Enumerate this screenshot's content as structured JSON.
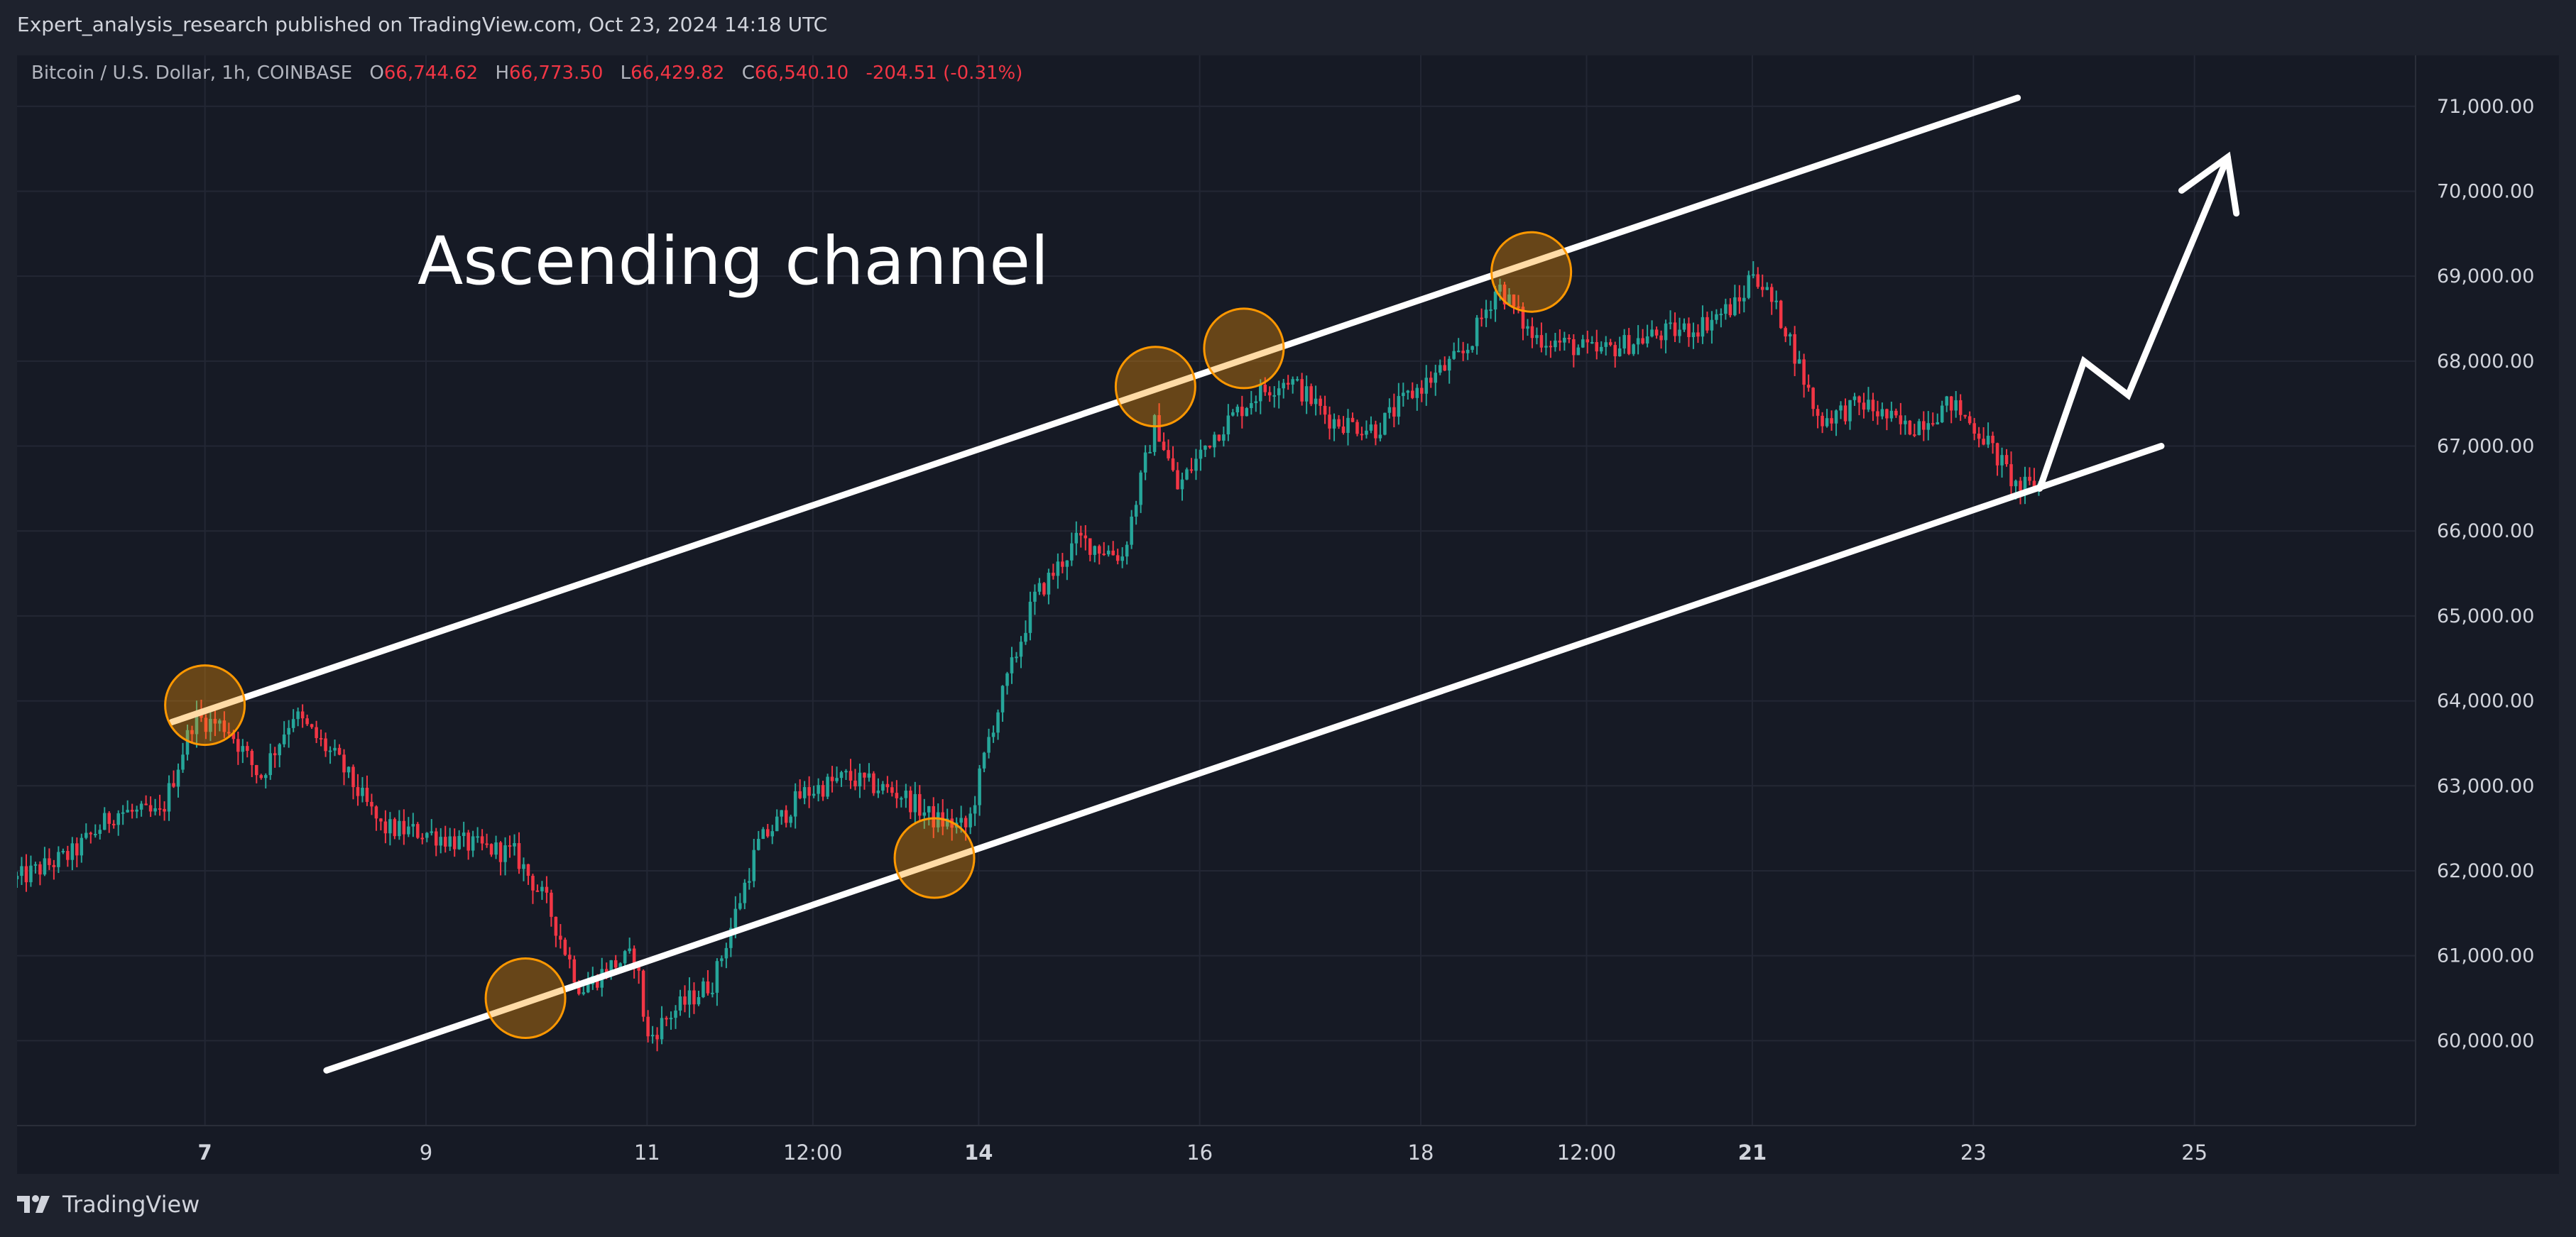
{
  "publisher_line": "Expert_analysis_research published on TradingView.com, Oct 23, 2024 14:18 UTC",
  "legend": {
    "symbol": "Bitcoin / U.S. Dollar, 1h, COINBASE",
    "open_label": "O",
    "open": "66,744.62",
    "high_label": "H",
    "high": "66,773.50",
    "low_label": "L",
    "low": "66,429.82",
    "close_label": "C",
    "close": "66,540.10",
    "change": "-204.51 (-0.31%)"
  },
  "brand": {
    "name": "TradingView",
    "logo_icon": "tradingview-logo-icon"
  },
  "colors": {
    "up": "#26a69a",
    "down": "#f23645",
    "drawing": "#ffffff",
    "marker_fill": "#ff9800",
    "background": "#161a25"
  },
  "chart_data": {
    "type": "candlestick",
    "symbol": "BTCUSD",
    "timeframe": "1h",
    "annotation_text": "Ascending channel",
    "x_tick_labels": [
      {
        "label": "7",
        "day": 7.0,
        "bold": true
      },
      {
        "label": "9",
        "day": 9.0,
        "bold": false
      },
      {
        "label": "11",
        "day": 11.0,
        "bold": false
      },
      {
        "label": "12:00",
        "day": 12.5,
        "bold": false
      },
      {
        "label": "14",
        "day": 14.0,
        "bold": true
      },
      {
        "label": "16",
        "day": 16.0,
        "bold": false
      },
      {
        "label": "18",
        "day": 18.0,
        "bold": false
      },
      {
        "label": "12:00",
        "day": 19.5,
        "bold": false
      },
      {
        "label": "21",
        "day": 21.0,
        "bold": true
      },
      {
        "label": "23",
        "day": 23.0,
        "bold": false
      },
      {
        "label": "25",
        "day": 25.0,
        "bold": false
      }
    ],
    "x_range_days": [
      5.3,
      27.0
    ],
    "y_range": [
      59000,
      71600
    ],
    "y_ticks": [
      60000,
      61000,
      62000,
      63000,
      64000,
      65000,
      66000,
      67000,
      68000,
      69000,
      70000,
      71000
    ],
    "y_tick_labels": [
      "60,000.00",
      "61,000.00",
      "62,000.00",
      "63,000.00",
      "64,000.00",
      "65,000.00",
      "66,000.00",
      "67,000.00",
      "68,000.00",
      "69,000.00",
      "70,000.00",
      "71,000.00"
    ],
    "price_path": [
      {
        "day": 5.3,
        "price": 61900
      },
      {
        "day": 5.8,
        "price": 62200
      },
      {
        "day": 6.2,
        "price": 62700
      },
      {
        "day": 6.6,
        "price": 62650
      },
      {
        "day": 6.9,
        "price": 63800
      },
      {
        "day": 7.2,
        "price": 63700
      },
      {
        "day": 7.5,
        "price": 63100
      },
      {
        "day": 7.8,
        "price": 63850
      },
      {
        "day": 8.2,
        "price": 63300
      },
      {
        "day": 8.6,
        "price": 62500
      },
      {
        "day": 9.0,
        "price": 62450
      },
      {
        "day": 9.4,
        "price": 62300
      },
      {
        "day": 9.8,
        "price": 62200
      },
      {
        "day": 10.1,
        "price": 61600
      },
      {
        "day": 10.4,
        "price": 60600
      },
      {
        "day": 10.7,
        "price": 60900
      },
      {
        "day": 10.9,
        "price": 61000
      },
      {
        "day": 11.0,
        "price": 60000
      },
      {
        "day": 11.2,
        "price": 60300
      },
      {
        "day": 11.6,
        "price": 60700
      },
      {
        "day": 12.0,
        "price": 62300
      },
      {
        "day": 12.4,
        "price": 62900
      },
      {
        "day": 12.8,
        "price": 63100
      },
      {
        "day": 13.3,
        "price": 62900
      },
      {
        "day": 13.6,
        "price": 62600
      },
      {
        "day": 13.9,
        "price": 62500
      },
      {
        "day": 14.1,
        "price": 63600
      },
      {
        "day": 14.5,
        "price": 65200
      },
      {
        "day": 14.9,
        "price": 65900
      },
      {
        "day": 15.3,
        "price": 65700
      },
      {
        "day": 15.6,
        "price": 67300
      },
      {
        "day": 15.8,
        "price": 66500
      },
      {
        "day": 16.1,
        "price": 67100
      },
      {
        "day": 16.5,
        "price": 67600
      },
      {
        "day": 16.8,
        "price": 67800
      },
      {
        "day": 17.2,
        "price": 67300
      },
      {
        "day": 17.6,
        "price": 67200
      },
      {
        "day": 17.9,
        "price": 67600
      },
      {
        "day": 18.4,
        "price": 68100
      },
      {
        "day": 18.7,
        "price": 68900
      },
      {
        "day": 19.0,
        "price": 68300
      },
      {
        "day": 19.6,
        "price": 68100
      },
      {
        "day": 20.1,
        "price": 68300
      },
      {
        "day": 20.5,
        "price": 68400
      },
      {
        "day": 20.9,
        "price": 68700
      },
      {
        "day": 21.0,
        "price": 69100
      },
      {
        "day": 21.3,
        "price": 68400
      },
      {
        "day": 21.6,
        "price": 67300
      },
      {
        "day": 22.0,
        "price": 67500
      },
      {
        "day": 22.4,
        "price": 67200
      },
      {
        "day": 22.8,
        "price": 67500
      },
      {
        "day": 23.1,
        "price": 67100
      },
      {
        "day": 23.4,
        "price": 66500
      },
      {
        "day": 23.6,
        "price": 66550
      }
    ],
    "channel_upper": {
      "start": {
        "day": 6.7,
        "price": 63750
      },
      "end": {
        "day": 23.4,
        "price": 71100
      }
    },
    "channel_lower": {
      "start": {
        "day": 8.1,
        "price": 59650
      },
      "end": {
        "day": 24.7,
        "price": 67000
      }
    },
    "touch_points": [
      {
        "day": 7.0,
        "price": 63950
      },
      {
        "day": 9.9,
        "price": 60500
      },
      {
        "day": 13.6,
        "price": 62150
      },
      {
        "day": 15.6,
        "price": 67700
      },
      {
        "day": 16.4,
        "price": 68150
      },
      {
        "day": 19.0,
        "price": 69050
      }
    ],
    "projection_path": [
      {
        "day": 23.6,
        "price": 66500
      },
      {
        "day": 24.0,
        "price": 68000
      },
      {
        "day": 24.4,
        "price": 67600
      },
      {
        "day": 25.3,
        "price": 70400
      }
    ]
  }
}
